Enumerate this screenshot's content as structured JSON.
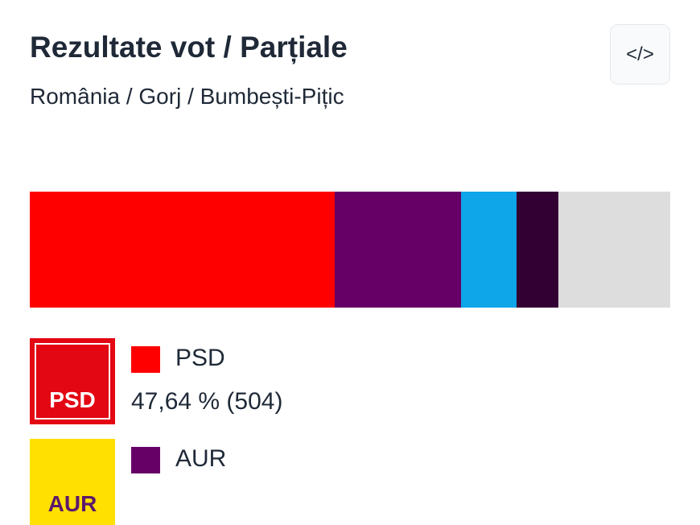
{
  "header": {
    "title": "Rezultate vot / Parțiale",
    "subtitle": "România / Gorj / Bumbești-Pițic",
    "embed_button": "</>"
  },
  "bar": {
    "segments": [
      {
        "color": "#ff0000",
        "value": 47.64
      },
      {
        "color": "#660066",
        "value": 19.7
      },
      {
        "color": "#0ea5e9",
        "value": 8.7
      },
      {
        "color": "#330033",
        "value": 6.5
      },
      {
        "color": "#dddddd",
        "value": 17.5
      }
    ]
  },
  "legend": [
    {
      "logo": "PSD",
      "logo_color": "#e30613",
      "name": "PSD",
      "color": "#ff0000",
      "result": "47,64 % (504)"
    },
    {
      "logo": "AUR",
      "logo_color": "#ffe000",
      "name": "AUR",
      "color": "#660066"
    }
  ]
}
